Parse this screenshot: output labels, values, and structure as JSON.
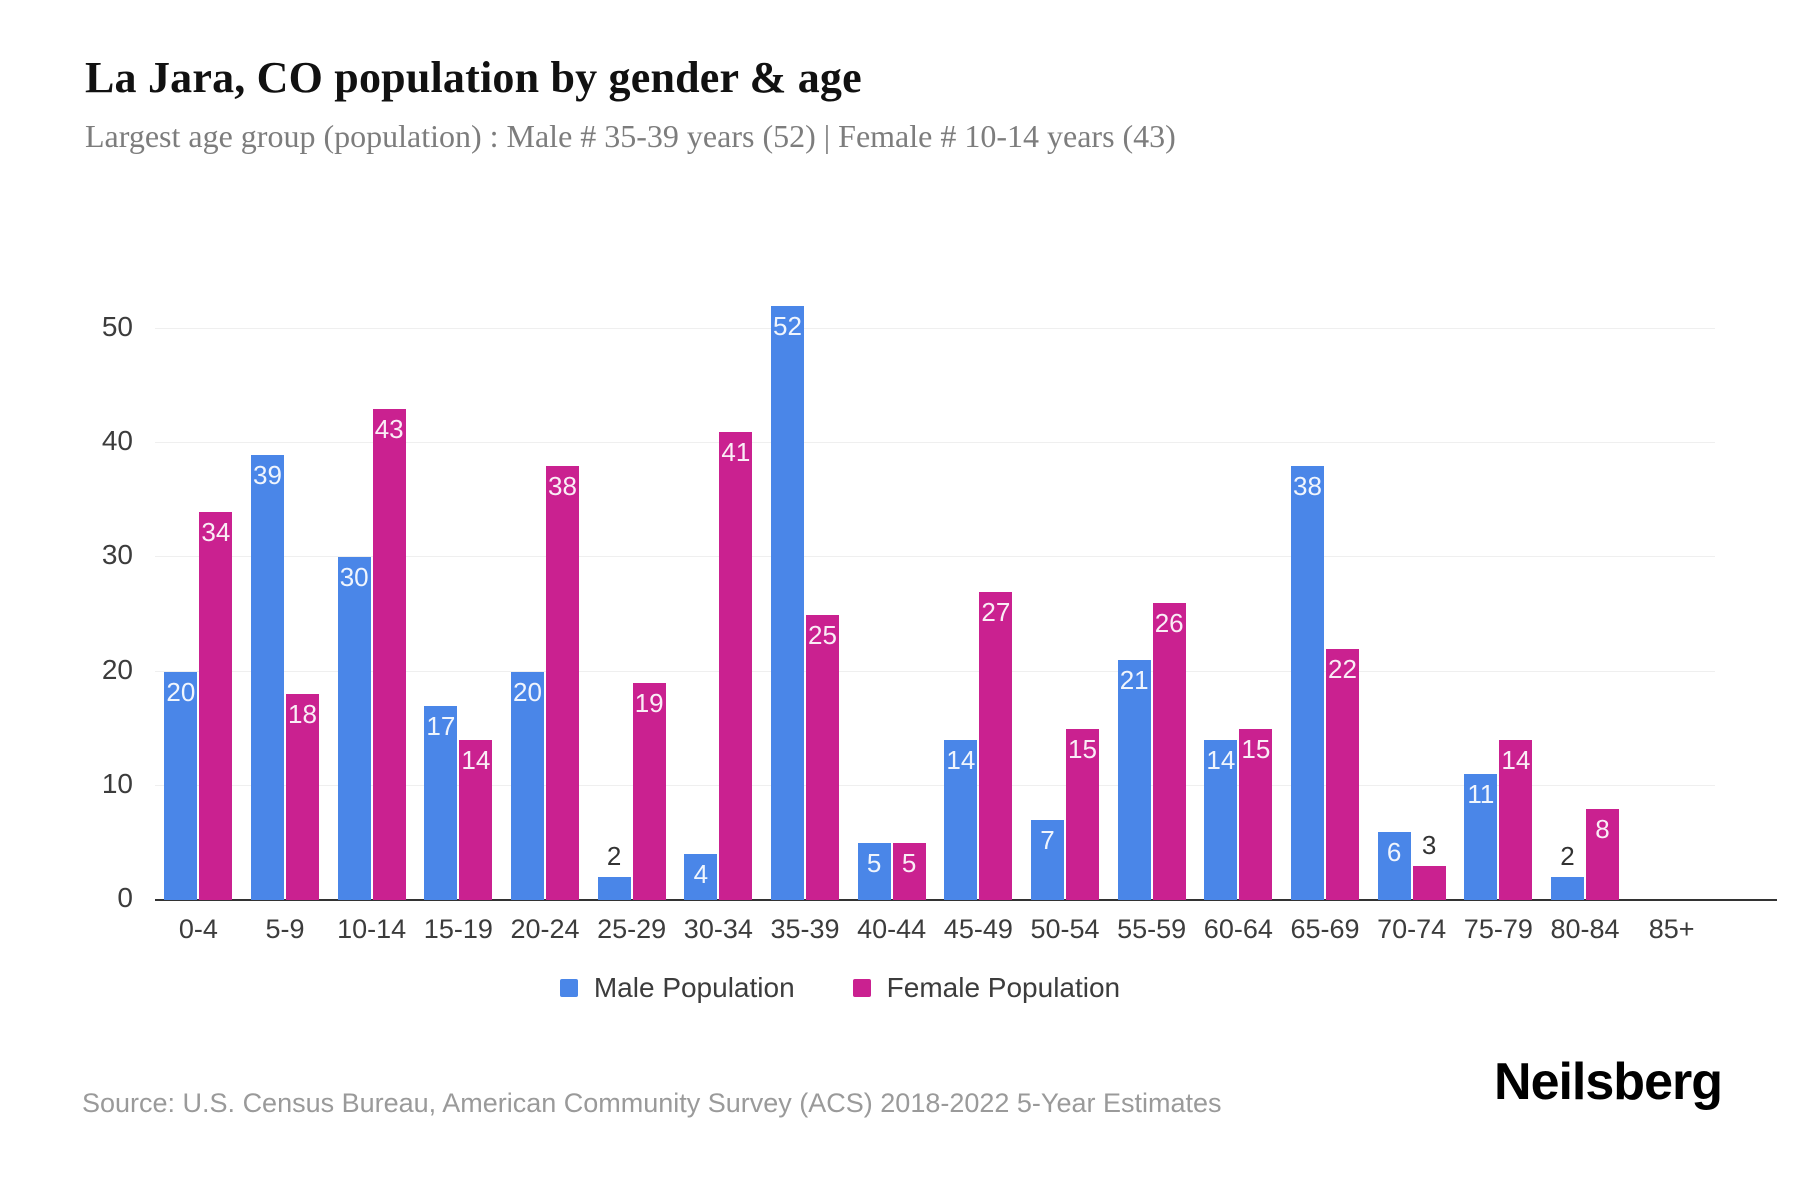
{
  "title": "La Jara, CO population by gender & age",
  "subtitle": "Largest age group (population) : Male # 35-39 years (52) | Female # 10-14 years (43)",
  "source": "Source: U.S. Census Bureau, American Community Survey (ACS) 2018-2022 5-Year Estimates",
  "logo": "Neilsberg",
  "colors": {
    "male_bar": "#4a86e8",
    "female_bar": "#ca2190",
    "grid": "#efefef",
    "axis": "#333333",
    "title": "#111111",
    "subtitle": "#7d7d7d",
    "tick": "#3c3c3c",
    "source": "#9a9a9a",
    "value_label_light": "#ffffff",
    "value_label_dark": "#333333"
  },
  "chart_data": {
    "type": "bar",
    "title": "La Jara, CO population by gender & age",
    "categories": [
      "0-4",
      "5-9",
      "10-14",
      "15-19",
      "20-24",
      "25-29",
      "30-34",
      "35-39",
      "40-44",
      "45-49",
      "50-54",
      "55-59",
      "60-64",
      "65-69",
      "70-74",
      "75-79",
      "80-84",
      "85+"
    ],
    "series": [
      {
        "name": "Male Population",
        "color": "#4a86e8",
        "values": [
          20,
          39,
          30,
          17,
          20,
          2,
          4,
          52,
          5,
          14,
          7,
          21,
          14,
          38,
          6,
          11,
          2,
          0
        ]
      },
      {
        "name": "Female Population",
        "color": "#ca2190",
        "values": [
          34,
          18,
          43,
          14,
          38,
          19,
          41,
          25,
          5,
          27,
          15,
          26,
          15,
          22,
          3,
          14,
          8,
          0
        ]
      }
    ],
    "xlabel": "",
    "ylabel": "",
    "ylim": [
      0,
      50
    ],
    "yticks": [
      0,
      10,
      20,
      30,
      40,
      50
    ],
    "grid": true,
    "legend_position": "bottom",
    "value_labels": true
  }
}
